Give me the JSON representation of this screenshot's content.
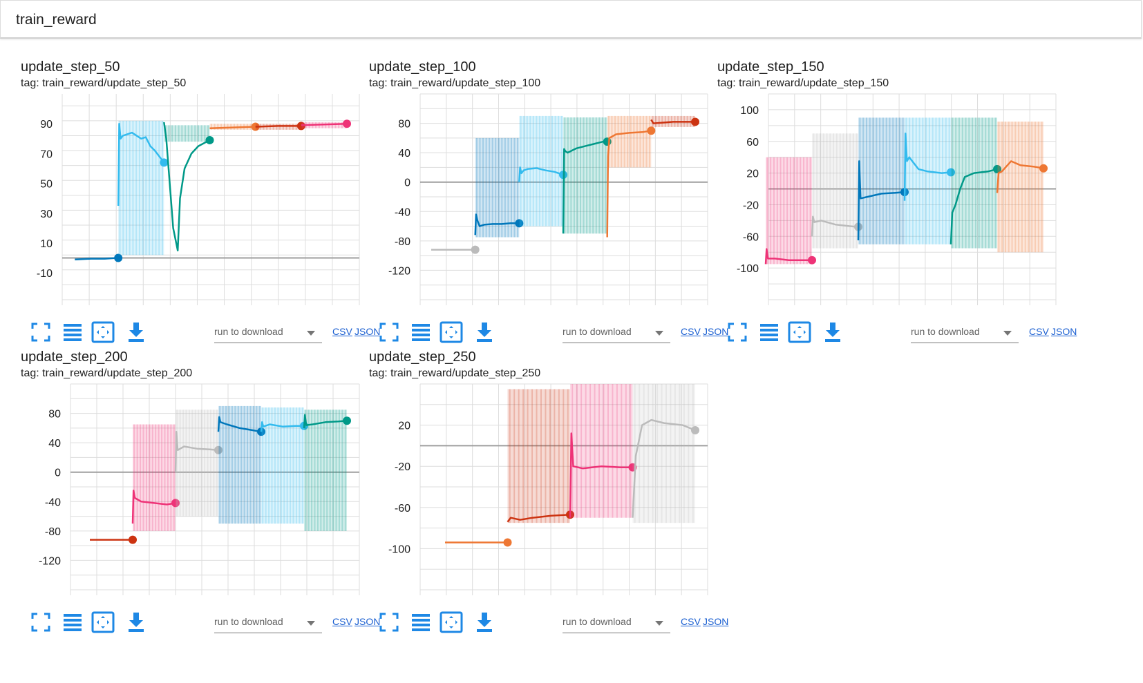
{
  "group": {
    "title": "train_reward"
  },
  "toolbar": {
    "run_placeholder": "run to download",
    "csv_label": "CSV",
    "json_label": "JSON",
    "icons": [
      "fullscreen-icon",
      "toggle-log-scale-icon",
      "fit-domain-icon",
      "download-icon"
    ]
  },
  "colors": {
    "accent": "#1e88e5",
    "grid": "#dddddd",
    "zero_line": "#9e9e9e"
  },
  "chart_data": [
    {
      "type": "line",
      "title": "update_step_50",
      "tag": "tag: train_reward/update_step_50",
      "ylim": [
        -28,
        110
      ],
      "yticks": [
        90,
        70,
        50,
        30,
        10,
        -10
      ],
      "series": [
        {
          "color": "#0077bb",
          "x": [
            0.05,
            0.4,
            0.7,
            0.99
          ],
          "y": [
            -1,
            -0.5,
            -0.5,
            0
          ],
          "band": [],
          "end": true
        },
        {
          "color": "#33bbee",
          "x": [
            0.0,
            0.02,
            0.05,
            0.1,
            0.2,
            0.3,
            0.45,
            0.5,
            0.6,
            0.7,
            0.8,
            0.9,
            1.0
          ],
          "y": [
            35,
            90,
            80,
            82,
            83,
            84,
            81,
            80,
            81,
            75,
            72,
            68,
            64
          ],
          "band": [
            2,
            92
          ],
          "end": true
        },
        {
          "color": "#009988",
          "x": [
            0.0,
            0.05,
            0.2,
            0.3,
            0.35,
            0.45,
            0.6,
            0.75,
            1.0
          ],
          "y": [
            91,
            80,
            20,
            5,
            40,
            60,
            70,
            75,
            79
          ],
          "band": [
            78,
            89
          ],
          "end": true
        },
        {
          "color": "#ee7733",
          "x": [
            0.0,
            0.5,
            1.0
          ],
          "y": [
            87,
            87.5,
            88
          ],
          "band": [
            86,
            90
          ],
          "end": true
        },
        {
          "color": "#cc3311",
          "x": [
            0.0,
            0.5,
            1.0
          ],
          "y": [
            88,
            88.5,
            88.5
          ],
          "band": [
            86,
            90
          ],
          "end": true
        },
        {
          "color": "#ee3377",
          "x": [
            0.0,
            0.5,
            1.0
          ],
          "y": [
            89,
            89.5,
            90
          ],
          "band": [
            87,
            91
          ],
          "end": true
        }
      ]
    },
    {
      "type": "line",
      "title": "update_step_100",
      "tag": "tag: train_reward/update_step_100",
      "ylim": [
        -160,
        120
      ],
      "yticks": [
        80,
        40,
        0,
        -40,
        -80,
        -120
      ],
      "series": [
        {
          "color": "#bbbbbb",
          "x": [
            0.0,
            0.5,
            1.0
          ],
          "y": [
            -92,
            -92,
            -92
          ],
          "band": [],
          "end": true
        },
        {
          "color": "#0077bb",
          "x": [
            0.0,
            0.02,
            0.05,
            0.1,
            0.2,
            0.4,
            0.6,
            0.8,
            1.0
          ],
          "y": [
            -72,
            -44,
            -52,
            -60,
            -58,
            -57,
            -57,
            -56,
            -56
          ],
          "band": [
            -75,
            60
          ],
          "end": true
        },
        {
          "color": "#33bbee",
          "x": [
            0.0,
            0.02,
            0.05,
            0.1,
            0.2,
            0.4,
            0.6,
            0.8,
            1.0
          ],
          "y": [
            0,
            20,
            12,
            16,
            18,
            19,
            16,
            14,
            10
          ],
          "band": [
            -60,
            90
          ],
          "end": true
        },
        {
          "color": "#009988",
          "x": [
            0.0,
            0.02,
            0.05,
            0.1,
            0.3,
            0.5,
            0.7,
            0.9,
            1.0
          ],
          "y": [
            -70,
            45,
            42,
            40,
            46,
            49,
            52,
            55,
            55
          ],
          "band": [
            -70,
            88
          ],
          "end": true
        },
        {
          "color": "#ee7733",
          "x": [
            0.0,
            0.02,
            0.05,
            0.2,
            0.5,
            0.8,
            1.0
          ],
          "y": [
            -75,
            35,
            60,
            65,
            67,
            68,
            70
          ],
          "band": [
            20,
            90
          ],
          "end": true
        },
        {
          "color": "#cc3311",
          "x": [
            0.0,
            0.05,
            0.5,
            1.0
          ],
          "y": [
            85,
            80,
            82,
            82
          ],
          "band": [
            75,
            90
          ],
          "end": true
        }
      ]
    },
    {
      "type": "line",
      "title": "update_step_150",
      "tag": "tag: train_reward/update_step_150",
      "ylim": [
        -140,
        120
      ],
      "yticks": [
        100,
        60,
        20,
        -20,
        -60,
        -100
      ],
      "series": [
        {
          "color": "#ee3377",
          "x": [
            0.0,
            0.02,
            0.05,
            0.2,
            0.5,
            0.8,
            1.0
          ],
          "y": [
            -95,
            -76,
            -88,
            -88,
            -90,
            -90,
            -90
          ],
          "band": [
            -95,
            40
          ],
          "end": true
        },
        {
          "color": "#bbbbbb",
          "x": [
            0.0,
            0.02,
            0.05,
            0.2,
            0.5,
            0.8,
            1.0
          ],
          "y": [
            -60,
            -35,
            -42,
            -40,
            -45,
            -47,
            -48
          ],
          "band": [
            -75,
            70
          ],
          "end": true
        },
        {
          "color": "#0077bb",
          "x": [
            0.0,
            0.02,
            0.05,
            0.2,
            0.5,
            0.8,
            1.0
          ],
          "y": [
            -65,
            35,
            -12,
            -10,
            -6,
            -5,
            -4
          ],
          "band": [
            -70,
            90
          ],
          "end": true
        },
        {
          "color": "#33bbee",
          "x": [
            0.0,
            0.02,
            0.05,
            0.1,
            0.3,
            0.5,
            0.8,
            1.0
          ],
          "y": [
            -15,
            70,
            35,
            40,
            25,
            22,
            20,
            21
          ],
          "band": [
            -70,
            90
          ],
          "end": true
        },
        {
          "color": "#009988",
          "x": [
            0.0,
            0.03,
            0.1,
            0.2,
            0.3,
            0.5,
            0.8,
            1.0
          ],
          "y": [
            -70,
            -30,
            -20,
            0,
            15,
            20,
            22,
            25
          ],
          "band": [
            -75,
            90
          ],
          "end": true
        },
        {
          "color": "#ee7733",
          "x": [
            0.0,
            0.03,
            0.1,
            0.3,
            0.5,
            0.8,
            1.0
          ],
          "y": [
            -5,
            20,
            22,
            35,
            30,
            28,
            26
          ],
          "band": [
            -80,
            85
          ],
          "end": true
        }
      ]
    },
    {
      "type": "line",
      "title": "update_step_200",
      "tag": "tag: train_reward/update_step_200",
      "ylim": [
        -160,
        120
      ],
      "yticks": [
        80,
        40,
        0,
        -40,
        -80,
        -120
      ],
      "series": [
        {
          "color": "#cc3311",
          "x": [
            0.0,
            0.5,
            1.0
          ],
          "y": [
            -92,
            -92,
            -92
          ],
          "band": [],
          "end": true
        },
        {
          "color": "#ee3377",
          "x": [
            0.0,
            0.02,
            0.05,
            0.2,
            0.5,
            0.8,
            1.0
          ],
          "y": [
            -70,
            -25,
            -35,
            -40,
            -42,
            -44,
            -42
          ],
          "band": [
            -80,
            65
          ],
          "end": true
        },
        {
          "color": "#bbbbbb",
          "x": [
            0.0,
            0.02,
            0.05,
            0.2,
            0.5,
            0.8,
            1.0
          ],
          "y": [
            0,
            55,
            30,
            35,
            32,
            31,
            30
          ],
          "band": [
            -60,
            85
          ],
          "end": true
        },
        {
          "color": "#0077bb",
          "x": [
            0.0,
            0.02,
            0.05,
            0.2,
            0.5,
            0.8,
            1.0
          ],
          "y": [
            55,
            75,
            68,
            65,
            60,
            57,
            55
          ],
          "band": [
            -70,
            90
          ],
          "end": true
        },
        {
          "color": "#33bbee",
          "x": [
            0.0,
            0.02,
            0.05,
            0.2,
            0.5,
            0.8,
            1.0
          ],
          "y": [
            55,
            68,
            62,
            65,
            62,
            63,
            63
          ],
          "band": [
            -70,
            88
          ],
          "end": true
        },
        {
          "color": "#009988",
          "x": [
            0.0,
            0.02,
            0.05,
            0.2,
            0.5,
            0.8,
            1.0
          ],
          "y": [
            60,
            78,
            64,
            65,
            68,
            69,
            70
          ],
          "band": [
            -80,
            85
          ],
          "end": true
        }
      ]
    },
    {
      "type": "line",
      "title": "update_step_250",
      "tag": "tag: train_reward/update_step_250",
      "ylim": [
        -140,
        60
      ],
      "yticks": [
        20,
        -20,
        -60,
        -100
      ],
      "series": [
        {
          "color": "#ee7733",
          "x": [
            0.0,
            0.5,
            1.0
          ],
          "y": [
            -94,
            -94,
            -94
          ],
          "band": [],
          "end": true
        },
        {
          "color": "#cc3311",
          "x": [
            0.0,
            0.05,
            0.2,
            0.4,
            0.7,
            1.0
          ],
          "y": [
            -74,
            -70,
            -72,
            -70,
            -68,
            -67
          ],
          "band": [
            -75,
            55
          ],
          "end": true
        },
        {
          "color": "#ee3377",
          "x": [
            0.0,
            0.02,
            0.05,
            0.2,
            0.5,
            0.8,
            1.0
          ],
          "y": [
            -70,
            12,
            -20,
            -22,
            -20,
            -21,
            -21
          ],
          "band": [
            -70,
            60
          ],
          "end": true
        },
        {
          "color": "#bbbbbb",
          "x": [
            0.0,
            0.05,
            0.15,
            0.3,
            0.5,
            0.8,
            1.0
          ],
          "y": [
            -70,
            -10,
            20,
            25,
            22,
            20,
            15
          ],
          "band": [
            -75,
            60
          ],
          "end": true
        }
      ]
    }
  ]
}
